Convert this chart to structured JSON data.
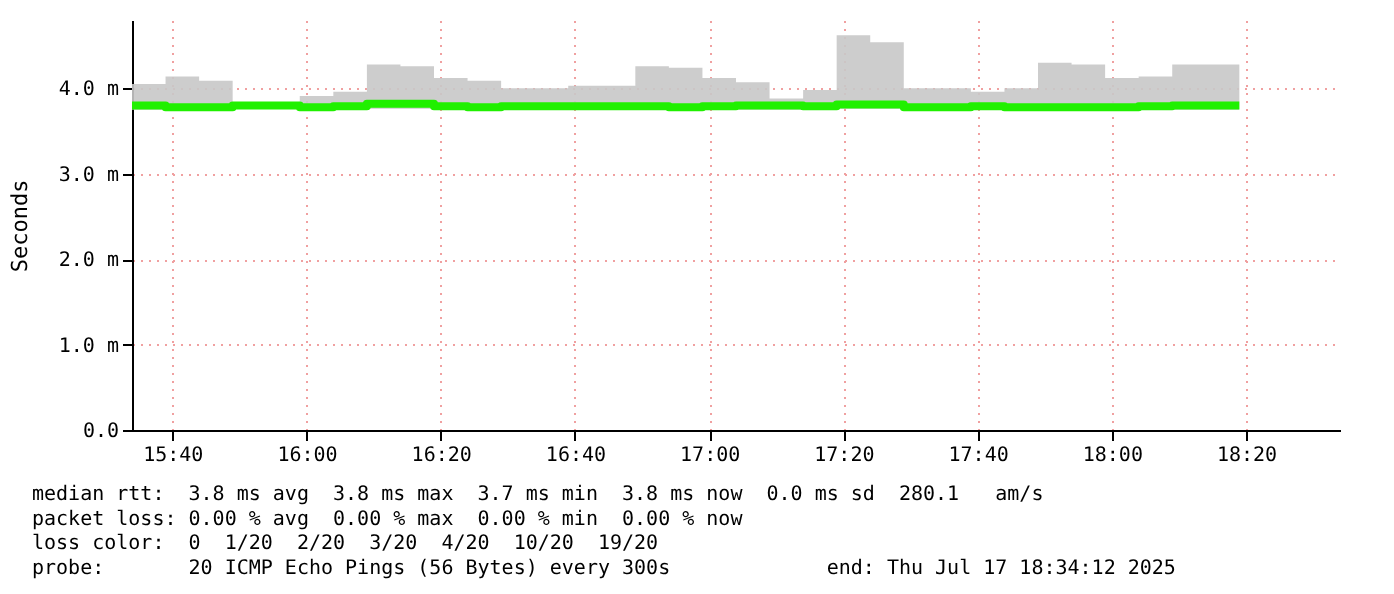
{
  "chart_data": {
    "type": "step",
    "ylabel": "Seconds",
    "x": [
      "2025-07-17T15:34",
      "2025-07-17T15:39",
      "2025-07-17T15:44",
      "2025-07-17T15:49",
      "2025-07-17T15:54",
      "2025-07-17T15:59",
      "2025-07-17T16:04",
      "2025-07-17T16:09",
      "2025-07-17T16:14",
      "2025-07-17T16:19",
      "2025-07-17T16:24",
      "2025-07-17T16:29",
      "2025-07-17T16:34",
      "2025-07-17T16:39",
      "2025-07-17T16:44",
      "2025-07-17T16:49",
      "2025-07-17T16:54",
      "2025-07-17T16:59",
      "2025-07-17T17:04",
      "2025-07-17T17:09",
      "2025-07-17T17:14",
      "2025-07-17T17:19",
      "2025-07-17T17:24",
      "2025-07-17T17:29",
      "2025-07-17T17:34",
      "2025-07-17T17:39",
      "2025-07-17T17:44",
      "2025-07-17T17:49",
      "2025-07-17T17:54",
      "2025-07-17T17:59",
      "2025-07-17T18:04",
      "2025-07-17T18:09",
      "2025-07-17T18:14",
      "2025-07-17T18:19"
    ],
    "series": [
      {
        "color": "#20f000",
        "values": [
          3.8,
          3.78,
          3.78,
          3.8,
          3.8,
          3.78,
          3.79,
          3.82,
          3.82,
          3.79,
          3.78,
          3.79,
          3.79,
          3.79,
          3.79,
          3.79,
          3.78,
          3.79,
          3.8,
          3.8,
          3.79,
          3.81,
          3.81,
          3.78,
          3.78,
          3.79,
          3.78,
          3.78,
          3.78,
          3.78,
          3.79,
          3.8,
          3.8,
          3.8
        ],
        "lower": [
          3.75,
          3.75,
          3.75,
          3.78,
          3.78,
          3.75,
          3.75,
          3.76,
          3.76,
          3.75,
          3.75,
          3.75,
          3.75,
          3.75,
          3.75,
          3.75,
          3.75,
          3.75,
          3.75,
          3.75,
          3.75,
          3.76,
          3.76,
          3.75,
          3.75,
          3.75,
          3.75,
          3.75,
          3.75,
          3.75,
          3.75,
          3.75,
          3.75,
          3.75
        ],
        "upper": [
          4.05,
          4.14,
          4.09,
          3.82,
          3.82,
          3.91,
          3.96,
          4.28,
          4.26,
          4.12,
          4.09,
          4.0,
          4.0,
          4.03,
          4.03,
          4.26,
          4.24,
          4.12,
          4.07,
          3.88,
          3.98,
          4.62,
          4.54,
          4.0,
          4.0,
          3.96,
          4.0,
          4.3,
          4.28,
          4.12,
          4.14,
          4.28,
          4.28,
          4.26
        ]
      }
    ],
    "xlim": [
      "2025-07-17T15:34",
      "2025-07-17T18:34"
    ],
    "xticks": [
      {
        "value": "2025-07-17T15:40",
        "label": "15:40"
      },
      {
        "value": "2025-07-17T16:00",
        "label": "16:00"
      },
      {
        "value": "2025-07-17T16:20",
        "label": "16:20"
      },
      {
        "value": "2025-07-17T16:40",
        "label": "16:40"
      },
      {
        "value": "2025-07-17T17:00",
        "label": "17:00"
      },
      {
        "value": "2025-07-17T17:20",
        "label": "17:20"
      },
      {
        "value": "2025-07-17T17:40",
        "label": "17:40"
      },
      {
        "value": "2025-07-17T18:00",
        "label": "18:00"
      },
      {
        "value": "2025-07-17T18:20",
        "label": "18:20"
      }
    ],
    "ylim": [
      0,
      4.8
    ],
    "yticks": [
      {
        "value": 0,
        "label": "0.0"
      },
      {
        "value": 1,
        "label": "1.0 m"
      },
      {
        "value": 2,
        "label": "2.0 m"
      },
      {
        "value": 3,
        "label": "3.0 m"
      },
      {
        "value": 4,
        "label": "4.0 m"
      }
    ],
    "grid": true,
    "annotations": [
      "median rtt:  3.8 ms avg  3.8 ms max  3.7 ms min  3.8 ms now  0.0 ms sd  280.1   am/s",
      "packet loss: 0.00 % avg  0.00 % max  0.00 % min  0.00 % now",
      "loss color:  0  1/20  2/20  3/20  4/20  10/20  19/20",
      "probe:       20 ICMP Echo Pings (56 Bytes) every 300s             end: Thu Jul 17 18:34:12 2025"
    ]
  }
}
